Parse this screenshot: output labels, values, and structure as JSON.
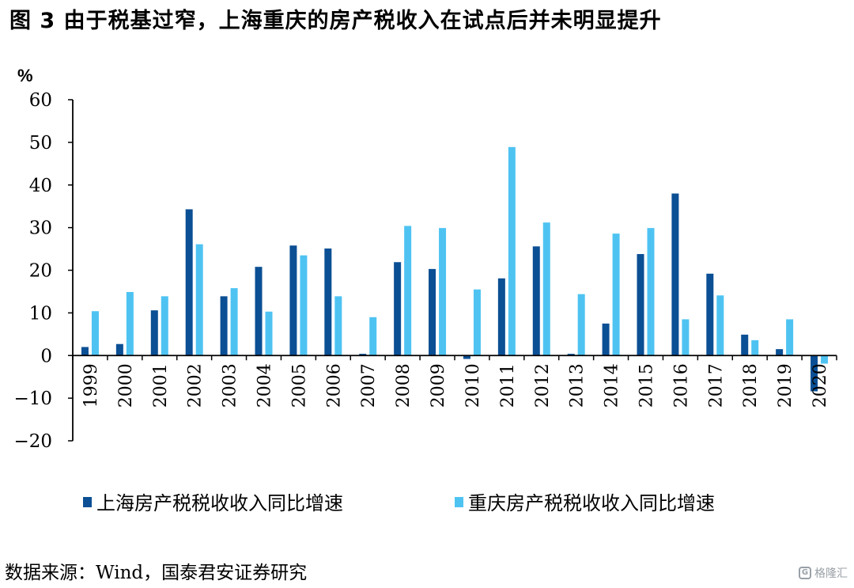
{
  "figure": {
    "title": "图 3 由于税基过窄，上海重庆的房产税收入在试点后并未明显提升",
    "source": "数据来源：Wind，国泰君安证券研究",
    "watermark": "格隆汇"
  },
  "colors": {
    "shanghai": "#0b4f94",
    "chongqing": "#4ec3f2",
    "axis": "#000000"
  },
  "chart_data": {
    "type": "bar",
    "title": "",
    "ylabel": "%",
    "xlabel": "",
    "ylim": [
      -20,
      60
    ],
    "yticks": [
      60,
      50,
      40,
      30,
      20,
      10,
      0,
      -10,
      -20
    ],
    "ytick_labels": [
      "60",
      "50",
      "40",
      "30",
      "20",
      "10",
      "0",
      "−10",
      "−20"
    ],
    "grid": false,
    "legend_position": "bottom",
    "categories": [
      "1999",
      "2000",
      "2001",
      "2002",
      "2003",
      "2004",
      "2005",
      "2006",
      "2007",
      "2008",
      "2009",
      "2010",
      "2011",
      "2012",
      "2013",
      "2014",
      "2015",
      "2016",
      "2017",
      "2018",
      "2019",
      "2020"
    ],
    "series": [
      {
        "name": "上海房产税税收收入同比增速",
        "values": [
          2.0,
          2.7,
          10.6,
          34.3,
          13.9,
          20.8,
          25.8,
          25.1,
          0.4,
          21.9,
          20.3,
          -0.8,
          18.1,
          25.6,
          0.4,
          7.5,
          23.8,
          38.0,
          19.2,
          4.9,
          1.5,
          -8.4
        ]
      },
      {
        "name": "重庆房产税税收收入同比增速",
        "values": [
          10.4,
          14.9,
          13.9,
          26.1,
          15.8,
          10.3,
          23.5,
          13.9,
          9.0,
          30.4,
          29.9,
          15.5,
          48.9,
          31.2,
          14.4,
          28.6,
          29.9,
          8.5,
          14.1,
          3.6,
          8.5,
          -1.9
        ]
      }
    ]
  }
}
